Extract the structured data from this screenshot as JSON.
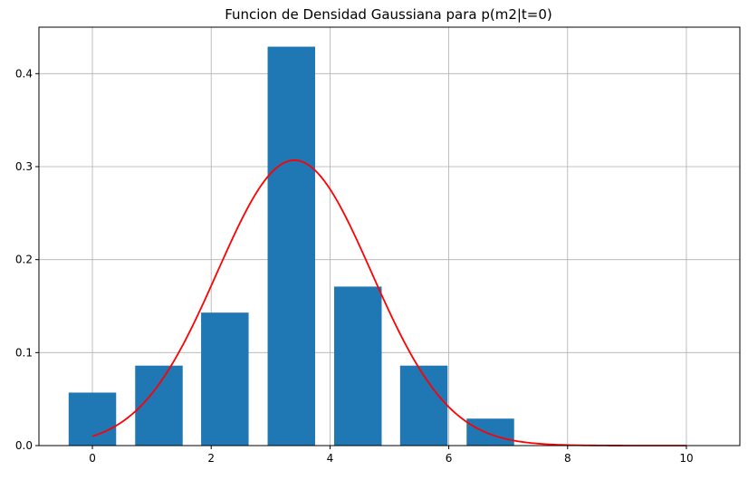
{
  "chart_data": {
    "type": "bar",
    "title": "Funcion de Densidad Gaussiana para p(m2|t=0)",
    "xlabel": "",
    "ylabel": "",
    "xlim": [
      -0.9,
      10.9
    ],
    "ylim": [
      0,
      0.45
    ],
    "grid": true,
    "xticks": [
      0,
      2,
      4,
      6,
      8,
      10
    ],
    "yticks": [
      0.0,
      0.1,
      0.2,
      0.3,
      0.4
    ],
    "bars": {
      "x": [
        0.0,
        1.12,
        2.23,
        3.35,
        4.47,
        5.58,
        6.7
      ],
      "width": 0.8,
      "values": [
        0.057,
        0.086,
        0.143,
        0.429,
        0.171,
        0.086,
        0.029
      ],
      "color": "#1f77b4"
    },
    "curve": {
      "type": "line",
      "name": "",
      "mean": 3.4,
      "std": 1.3,
      "x_range": [
        0,
        10
      ],
      "color": "#ff0000"
    }
  }
}
